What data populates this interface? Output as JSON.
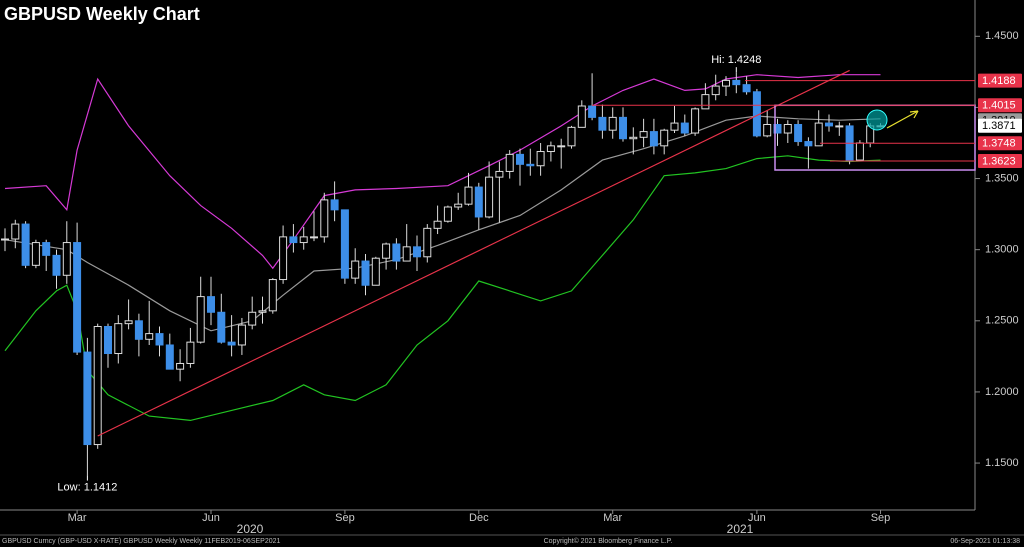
{
  "chart_data": {
    "type": "candlestick",
    "title": "GBPUSD Weekly Chart",
    "categories": [
      null,
      null,
      null,
      null,
      null,
      null,
      null,
      "Mar",
      null,
      null,
      null,
      null,
      null,
      null,
      null,
      null,
      null,
      null,
      null,
      null,
      "Jun",
      null,
      null,
      null,
      null,
      null,
      null,
      null,
      null,
      null,
      null,
      null,
      null,
      "Sep",
      null,
      null,
      null,
      null,
      null,
      null,
      null,
      null,
      null,
      null,
      null,
      null,
      "Dec",
      null,
      null,
      null,
      null,
      null,
      null,
      null,
      null,
      null,
      null,
      null,
      null,
      "Mar",
      null,
      null,
      null,
      null,
      null,
      null,
      null,
      null,
      null,
      null,
      null,
      null,
      null,
      "Jun",
      null,
      null,
      null,
      null,
      null,
      null,
      null,
      null,
      null,
      null,
      null,
      "Sep"
    ],
    "years": [
      "2020",
      "2021"
    ],
    "open": [
      1.307,
      1.3075,
      1.318,
      1.289,
      1.305,
      1.296,
      1.282,
      1.305,
      1.228,
      1.163,
      1.246,
      1.227,
      1.248,
      1.25,
      1.237,
      1.241,
      1.233,
      1.216,
      1.22,
      1.235,
      1.267,
      1.256,
      1.235,
      1.233,
      1.247,
      1.256,
      1.257,
      1.279,
      1.309,
      1.305,
      1.309,
      1.309,
      1.335,
      1.328,
      1.28,
      1.292,
      1.275,
      1.294,
      1.304,
      1.292,
      1.302,
      1.295,
      1.315,
      1.32,
      1.33,
      1.332,
      1.344,
      1.323,
      1.351,
      1.355,
      1.367,
      1.36,
      1.359,
      1.369,
      1.373,
      1.373,
      1.386,
      1.401,
      1.393,
      1.384,
      1.393,
      1.378,
      1.379,
      1.383,
      1.373,
      1.384,
      1.389,
      1.382,
      1.399,
      1.409,
      1.415,
      1.419,
      1.416,
      1.411,
      1.38,
      1.388,
      1.382,
      1.388,
      1.376,
      1.373,
      1.389,
      1.387,
      1.387,
      1.363,
      1.375,
      1.387
    ],
    "high": [
      1.315,
      1.321,
      1.32,
      1.307,
      1.307,
      1.3,
      1.32,
      1.319,
      1.238,
      1.248,
      1.248,
      1.254,
      1.265,
      1.255,
      1.264,
      1.246,
      1.241,
      1.23,
      1.245,
      1.281,
      1.281,
      1.269,
      1.254,
      1.252,
      1.267,
      1.267,
      1.28,
      1.317,
      1.318,
      1.316,
      1.327,
      1.34,
      1.348,
      1.328,
      1.301,
      1.297,
      1.295,
      1.305,
      1.308,
      1.318,
      1.31,
      1.318,
      1.331,
      1.331,
      1.34,
      1.354,
      1.347,
      1.362,
      1.362,
      1.37,
      1.371,
      1.371,
      1.375,
      1.376,
      1.378,
      1.387,
      1.405,
      1.424,
      1.402,
      1.4,
      1.4,
      1.386,
      1.392,
      1.392,
      1.385,
      1.401,
      1.395,
      1.4,
      1.417,
      1.423,
      1.422,
      1.4248,
      1.422,
      1.413,
      1.398,
      1.392,
      1.391,
      1.391,
      1.379,
      1.398,
      1.395,
      1.39,
      1.389,
      1.377,
      1.389,
      1.389
    ],
    "low": [
      1.299,
      1.301,
      1.287,
      1.287,
      1.285,
      1.2725,
      1.276,
      1.226,
      1.1412,
      1.16,
      1.217,
      1.22,
      1.244,
      1.225,
      1.233,
      1.225,
      1.216,
      1.2075,
      1.217,
      1.234,
      1.247,
      1.234,
      1.225,
      1.226,
      1.244,
      1.248,
      1.255,
      1.276,
      1.298,
      1.3,
      1.306,
      1.305,
      1.32,
      1.276,
      1.276,
      1.268,
      1.275,
      1.286,
      1.286,
      1.292,
      1.285,
      1.291,
      1.311,
      1.319,
      1.328,
      1.331,
      1.314,
      1.322,
      1.319,
      1.35,
      1.345,
      1.352,
      1.352,
      1.362,
      1.357,
      1.371,
      1.386,
      1.391,
      1.378,
      1.378,
      1.376,
      1.367,
      1.372,
      1.367,
      1.367,
      1.382,
      1.38,
      1.38,
      1.399,
      1.405,
      1.408,
      1.41,
      1.409,
      1.379,
      1.379,
      1.373,
      1.375,
      1.373,
      1.357,
      1.373,
      1.383,
      1.38,
      1.36,
      1.363,
      1.372,
      1.386
    ],
    "close": [
      1.3075,
      1.318,
      1.289,
      1.305,
      1.296,
      1.282,
      1.305,
      1.228,
      1.163,
      1.246,
      1.227,
      1.248,
      1.25,
      1.237,
      1.241,
      1.233,
      1.216,
      1.22,
      1.235,
      1.267,
      1.256,
      1.235,
      1.233,
      1.247,
      1.256,
      1.257,
      1.279,
      1.309,
      1.305,
      1.309,
      1.309,
      1.335,
      1.328,
      1.28,
      1.292,
      1.275,
      1.294,
      1.304,
      1.292,
      1.302,
      1.295,
      1.315,
      1.32,
      1.33,
      1.332,
      1.344,
      1.323,
      1.351,
      1.355,
      1.367,
      1.36,
      1.359,
      1.369,
      1.373,
      1.373,
      1.386,
      1.401,
      1.393,
      1.384,
      1.393,
      1.378,
      1.379,
      1.383,
      1.373,
      1.384,
      1.389,
      1.382,
      1.399,
      1.409,
      1.415,
      1.419,
      1.416,
      1.411,
      1.38,
      1.388,
      1.382,
      1.388,
      1.376,
      1.373,
      1.389,
      1.387,
      1.387,
      1.363,
      1.375,
      1.387,
      1.3871
    ],
    "up_color": "#000000",
    "down_color": "#3d8ee8",
    "lines": [
      {
        "color": "#d63ad6",
        "x": [
          0,
          4,
          6,
          7,
          9,
          12,
          16,
          19,
          22,
          25,
          26,
          28,
          31,
          34,
          38,
          43,
          47,
          50,
          54,
          57,
          60,
          63,
          66,
          68,
          70,
          73,
          77,
          81,
          85
        ],
        "values": [
          1.343,
          1.345,
          1.328,
          1.37,
          1.42,
          1.387,
          1.352,
          1.331,
          1.315,
          1.296,
          1.287,
          1.307,
          1.338,
          1.342,
          1.343,
          1.345,
          1.359,
          1.37,
          1.387,
          1.401,
          1.412,
          1.42,
          1.412,
          1.413,
          1.42,
          1.423,
          1.421,
          1.423,
          1.423
        ]
      },
      {
        "color": "#22c422",
        "x": [
          0,
          3,
          5,
          6,
          7,
          8,
          10,
          14,
          18,
          22,
          26,
          29,
          31,
          34,
          37,
          40,
          43,
          46,
          49,
          52,
          55,
          58,
          61,
          64,
          67,
          70,
          73,
          76,
          79,
          82,
          85
        ],
        "values": [
          1.229,
          1.257,
          1.271,
          1.275,
          1.257,
          1.215,
          1.198,
          1.183,
          1.18,
          1.187,
          1.194,
          1.205,
          1.198,
          1.194,
          1.205,
          1.233,
          1.25,
          1.278,
          1.271,
          1.264,
          1.271,
          1.296,
          1.321,
          1.352,
          1.354,
          1.357,
          1.364,
          1.366,
          1.363,
          1.362,
          1.363
        ]
      },
      {
        "color": "#9a9a9a",
        "x": [
          0,
          6,
          8,
          12,
          16,
          20,
          24,
          27,
          30,
          34,
          38,
          42,
          46,
          50,
          54,
          58,
          62,
          66,
          70,
          73,
          77,
          81,
          85
        ],
        "values": [
          1.307,
          1.3,
          1.291,
          1.275,
          1.257,
          1.243,
          1.25,
          1.268,
          1.285,
          1.287,
          1.293,
          1.303,
          1.314,
          1.324,
          1.342,
          1.363,
          1.371,
          1.38,
          1.391,
          1.394,
          1.392,
          1.391,
          1.392
        ]
      },
      {
        "color": "#e8334a",
        "x": [
          9,
          82
        ],
        "values": [
          1.169,
          1.426
        ]
      }
    ],
    "levels": [
      {
        "value": 1.4188,
        "color": "#e8334a"
      },
      {
        "value": 1.4015,
        "color": "#e8334a"
      },
      {
        "value": 1.391,
        "label": "1.3910",
        "color": "#9a9a9a"
      },
      {
        "value": 1.3871,
        "color": "#ffffff"
      },
      {
        "value": 1.3748,
        "color": "#e8334a"
      },
      {
        "value": 1.3623,
        "color": "#e8334a"
      }
    ],
    "annotations": [
      "Hi: 1.4248",
      "Low: 1.1412"
    ],
    "ylim": [
      1.117,
      1.472
    ],
    "yticks": [
      {
        "value": 1.15,
        "label": "1.1500"
      },
      {
        "value": 1.2,
        "label": "1.2000"
      },
      {
        "value": 1.25,
        "label": "1.2500"
      },
      {
        "value": 1.3,
        "label": "1.3000"
      },
      {
        "value": 1.35,
        "label": "1.3500"
      },
      {
        "value": 1.4,
        "label": "1.4000"
      },
      {
        "value": 1.45,
        "label": "1.4500"
      }
    ],
    "footer": [
      "GBPUSD Curncy (GBP-USD X-RATE) GBPUSD Weekly  Weekly 11FEB2019-06SEP2021",
      "Copyright© 2021 Bloomberg Finance L.P.",
      "06-Sep-2021 01:13:38"
    ]
  }
}
